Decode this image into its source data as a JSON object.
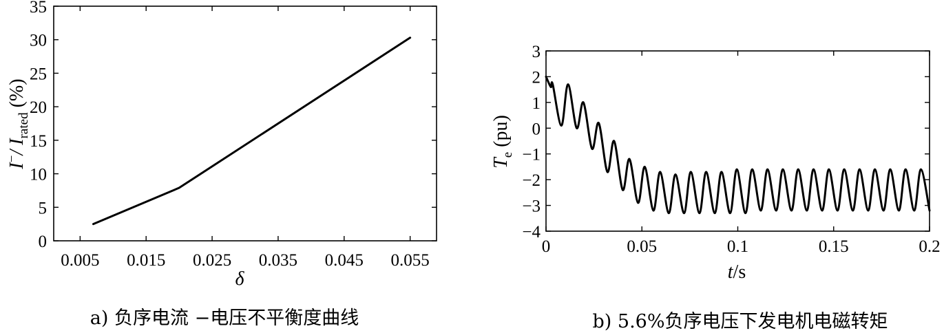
{
  "chart_data": [
    {
      "type": "line",
      "panel_caption": "a) 负序电流 −电压不平衡度曲线",
      "xlabel": "δ",
      "ylabel": "I⁻/ I_rated (%)",
      "ylabel_parts": {
        "main1": "I",
        "sup": "−",
        "main2": "/ I",
        "sub": "rated",
        "unit": " (%)"
      },
      "xlim": [
        0.001,
        0.059
      ],
      "ylim": [
        0,
        35
      ],
      "xticks": [
        "0.005",
        "0.015",
        "0.025",
        "0.035",
        "0.045",
        "0.055"
      ],
      "xtick_values": [
        0.005,
        0.015,
        0.025,
        0.035,
        0.045,
        0.055
      ],
      "yticks": [
        "0",
        "5",
        "10",
        "15",
        "20",
        "25",
        "30",
        "35"
      ],
      "ytick_values": [
        0,
        5,
        10,
        15,
        20,
        25,
        30,
        35
      ],
      "series": [
        {
          "x": [
            0.007,
            0.02,
            0.055
          ],
          "y": [
            2.5,
            7.9,
            30.3
          ]
        }
      ]
    },
    {
      "type": "line",
      "panel_caption": "b) 5.6%负序电压下发电机电磁转矩",
      "xlabel": "t/s",
      "xlabel_parts": {
        "var": "t",
        "unit": "/s"
      },
      "ylabel": "T_e (pu)",
      "ylabel_parts": {
        "main": "T",
        "sub": "e",
        "unit": " (pu)"
      },
      "xlim": [
        0,
        0.2
      ],
      "ylim": [
        -4,
        3
      ],
      "xticks": [
        "0",
        "0.05",
        "0.1",
        "0.15",
        "0.2"
      ],
      "xtick_values": [
        0,
        0.05,
        0.1,
        0.15,
        0.2
      ],
      "yticks": [
        "3",
        "2",
        "1",
        "0",
        "−1",
        "−2",
        "−3",
        "−4"
      ],
      "ytick_values": [
        3,
        2,
        1,
        0,
        -1,
        -2,
        -3,
        -4
      ],
      "series": [
        {
          "x": [
            0,
            0.0025,
            0.0035,
            0.008,
            0.0115,
            0.016,
            0.0195,
            0.024,
            0.0275,
            0.032,
            0.0355,
            0.04,
            0.0435,
            0.048,
            0.0515,
            0.056,
            0.0595,
            0.064,
            0.0675,
            0.072,
            0.0755,
            0.08,
            0.0835,
            0.088,
            0.0915,
            0.096,
            0.0995,
            0.104,
            0.1075,
            0.112,
            0.1155,
            0.12,
            0.1235,
            0.128,
            0.1315,
            0.136,
            0.1395,
            0.144,
            0.1475,
            0.152,
            0.1555,
            0.16,
            0.1635,
            0.168,
            0.1715,
            0.176,
            0.1795,
            0.184,
            0.1875,
            0.192,
            0.1955,
            0.2
          ],
          "y": [
            2.0,
            1.6,
            1.7,
            0.1,
            1.7,
            0.0,
            1.0,
            -0.8,
            0.2,
            -1.7,
            -0.5,
            -2.4,
            -1.2,
            -2.9,
            -1.5,
            -3.2,
            -1.7,
            -3.3,
            -1.8,
            -3.3,
            -1.7,
            -3.3,
            -1.7,
            -3.3,
            -1.7,
            -3.3,
            -1.6,
            -3.3,
            -1.6,
            -3.2,
            -1.6,
            -3.2,
            -1.6,
            -3.2,
            -1.6,
            -3.2,
            -1.6,
            -3.2,
            -1.6,
            -3.2,
            -1.6,
            -3.2,
            -1.6,
            -3.2,
            -1.6,
            -3.2,
            -1.6,
            -3.2,
            -1.6,
            -3.2,
            -1.6,
            -3.2
          ]
        }
      ]
    }
  ]
}
